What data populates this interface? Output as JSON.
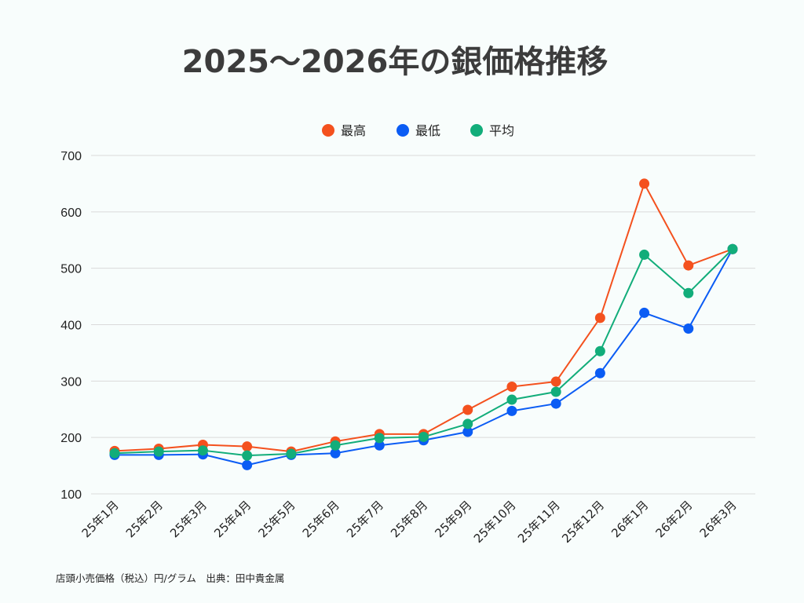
{
  "chart_data": {
    "type": "line",
    "title": "2025～2026年の銀価格推移",
    "categories": [
      "25年1月",
      "25年2月",
      "25年3月",
      "25年4月",
      "25年5月",
      "25年6月",
      "25年7月",
      "25年8月",
      "25年9月",
      "25年10月",
      "25年11月",
      "25年12月",
      "26年1月",
      "26年2月",
      "26年3月"
    ],
    "series": [
      {
        "name": "最高",
        "color": "#f4511e",
        "values": [
          176,
          180,
          187,
          184,
          175,
          193,
          206,
          206,
          249,
          290,
          299,
          412,
          650,
          505,
          534
        ]
      },
      {
        "name": "最低",
        "color": "#0b5cf4",
        "values": [
          169,
          169,
          170,
          151,
          169,
          172,
          186,
          195,
          210,
          247,
          260,
          314,
          421,
          393,
          534
        ]
      },
      {
        "name": "平均",
        "color": "#12ad7a",
        "values": [
          172,
          175,
          177,
          168,
          171,
          186,
          199,
          201,
          224,
          267,
          281,
          353,
          524,
          456,
          534
        ]
      }
    ],
    "ylim": [
      100,
      700
    ],
    "yticks": [
      100,
      200,
      300,
      400,
      500,
      600,
      700
    ],
    "grid": true,
    "legend": "top-center",
    "xlabel": "",
    "ylabel": "",
    "source_note": "店頭小売価格（税込）円/グラム　出典：田中貴金属"
  }
}
